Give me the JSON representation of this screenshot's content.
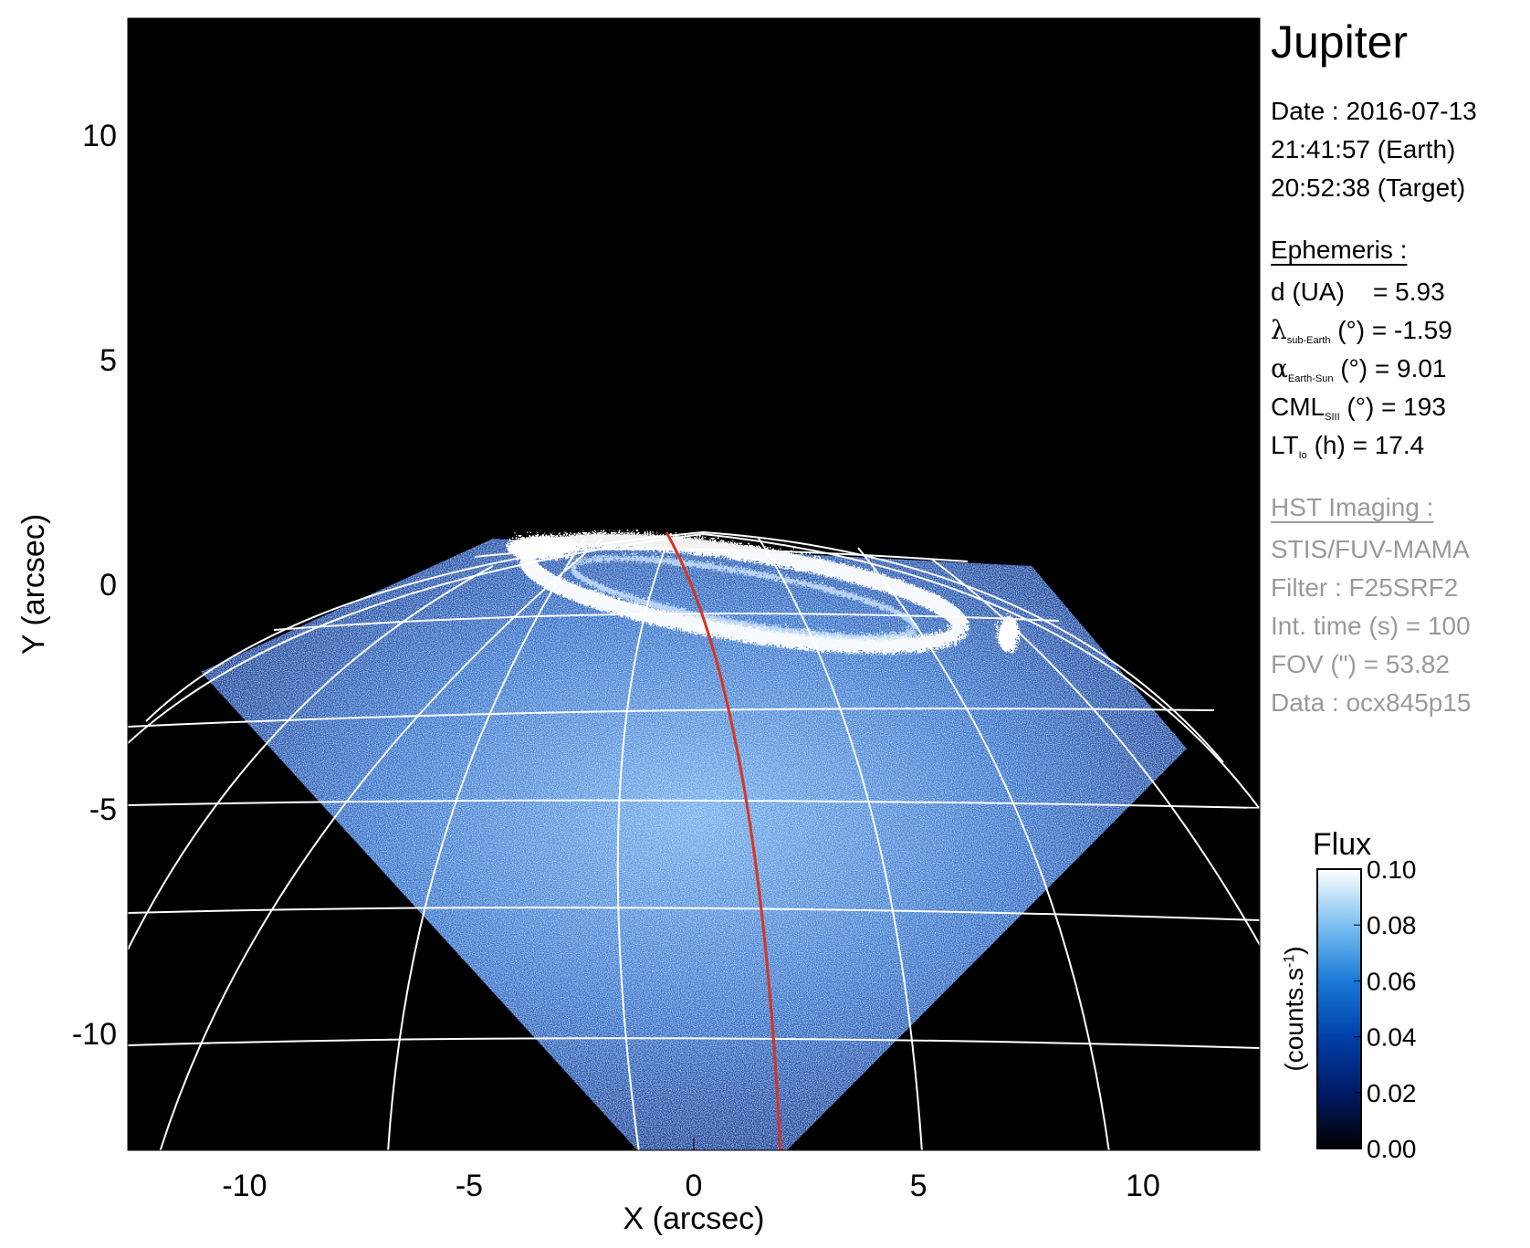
{
  "chart_data": {
    "type": "heatmap",
    "title": "Jupiter",
    "xlabel": "X (arcsec)",
    "ylabel": "Y (arcsec)",
    "xlim": [
      -12.6,
      12.6
    ],
    "ylim": [
      -12.6,
      12.6
    ],
    "xticks": [
      -10,
      -5,
      0,
      5,
      10
    ],
    "yticks": [
      10,
      5,
      0,
      -5,
      -10
    ],
    "xtick_labels": [
      "-10",
      "-5",
      "0",
      "5",
      "10"
    ],
    "ytick_labels": [
      "10",
      "5",
      "0",
      "-5",
      "-10"
    ],
    "central_meridian_color": "#d9341f",
    "grid_color": "#ffffff",
    "colorbar": {
      "title": "Flux",
      "label": "(counts.s",
      "label_sup": "-1",
      "label_close": ")",
      "range": [
        0.0,
        0.1
      ],
      "ticks": [
        0.1,
        0.08,
        0.06,
        0.04,
        0.02,
        0.0
      ],
      "tick_labels": [
        "0.10",
        "0.08",
        "0.06",
        "0.04",
        "0.02",
        "0.00"
      ],
      "colors": [
        "#000000",
        "#001a66",
        "#0040a8",
        "#1a7ad6",
        "#7cc0f0",
        "#ffffff"
      ]
    }
  },
  "info": {
    "date_line": "Date : 2016-07-13",
    "earth_time": "21:41:57 (Earth)",
    "target_time": "20:52:38 (Target)",
    "ephemeris_header": "Ephemeris :",
    "d_label": "d (UA)",
    "d_value": "= 5.93",
    "lambda_symbol": "λ",
    "lambda_sub": "sub-Earth",
    "lambda_value": "(°) = -1.59",
    "alpha_symbol": "α",
    "alpha_sub": "Earth-Sun",
    "alpha_value": "(°) = 9.01",
    "cml_label": "CML",
    "cml_sub": "SIII",
    "cml_value": "(°) = 193",
    "lt_label": "LT",
    "lt_sub": "Io",
    "lt_value": "(h) = 17.4",
    "hst_header": "HST Imaging :",
    "instrument": "STIS/FUV-MAMA",
    "filter": "Filter : F25SRF2",
    "int_time": "Int. time (s) = 100",
    "fov": "FOV (\") = 53.82",
    "data_id": "Data : ocx845p15"
  }
}
